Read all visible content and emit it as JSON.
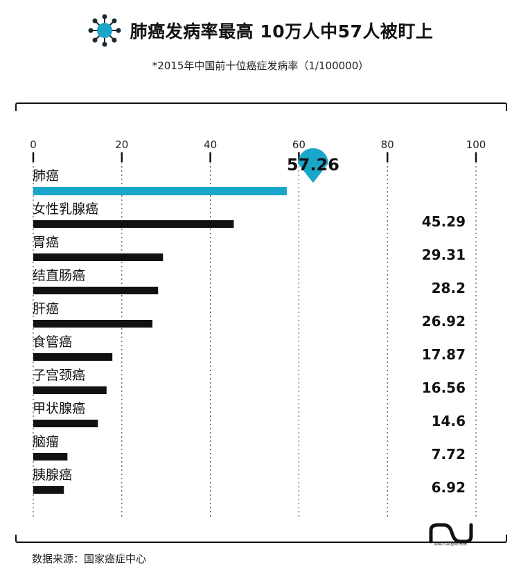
{
  "header": {
    "title": "肺癌发病率最高 10万人中57人被盯上",
    "subtitle": "*2015年中国前十位癌症发病率（1/100000）"
  },
  "footer": {
    "source": "数据来源：国家癌症中心",
    "logo_text": "南都大数据研究院"
  },
  "icons": {
    "title": "virus-icon",
    "logo": "nandu-logo-icon"
  },
  "colors": {
    "highlight": "#1aa6c9",
    "bar": "#111111",
    "text": "#111111",
    "grid": "#333333"
  },
  "chart_data": {
    "type": "bar",
    "orientation": "horizontal",
    "categories": [
      "肺癌",
      "女性乳腺癌",
      "胃癌",
      "结直肠癌",
      "肝癌",
      "食管癌",
      "子宫颈癌",
      "甲状腺癌",
      "脑瘤",
      "胰腺癌"
    ],
    "values": [
      57.26,
      45.29,
      29.31,
      28.2,
      26.92,
      17.87,
      16.56,
      14.6,
      7.72,
      6.92
    ],
    "value_labels": [
      "57.26",
      "45.29",
      "29.31",
      "28.2",
      "26.92",
      "17.87",
      "16.56",
      "14.6",
      "7.72",
      "6.92"
    ],
    "xlim": [
      0,
      100
    ],
    "xticks": [
      0,
      20,
      40,
      60,
      80,
      100
    ],
    "xtick_labels": [
      "0",
      "20",
      "40",
      "60",
      "80",
      "100"
    ],
    "highlight_index": 0,
    "grid": "dashed vertical",
    "axis_position": "top"
  }
}
